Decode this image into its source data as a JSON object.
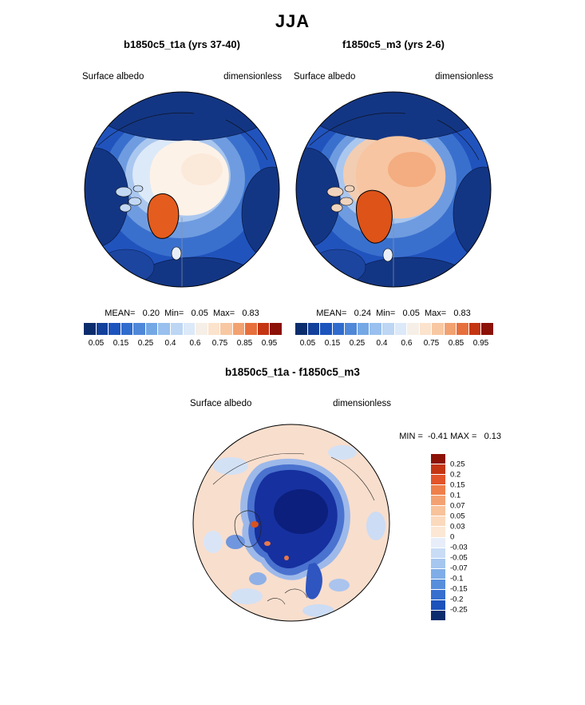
{
  "figure": {
    "title": "JJA"
  },
  "panels": [
    {
      "title": "b1850c5_t1a (yrs 37-40)",
      "var_label": "Surface albedo",
      "units": "dimensionless",
      "stats": "MEAN=   0.20  Min=   0.05  Max=   0.83"
    },
    {
      "title": "f1850c5_m3 (yrs 2-6)",
      "var_label": "Surface albedo",
      "units": "dimensionless",
      "stats": "MEAN=   0.24  Min=   0.05  Max=   0.83"
    }
  ],
  "diff_panel": {
    "title": "b1850c5_t1a - f1850c5_m3",
    "var_label": "Surface albedo",
    "units": "dimensionless",
    "minmax": "MIN =  -0.41 MAX =   0.13"
  },
  "colorbars": {
    "albedo": {
      "colors": [
        "#0b2d6d",
        "#12409b",
        "#1c54bd",
        "#2f6ccd",
        "#4f88d9",
        "#74a8e5",
        "#99c0ee",
        "#bcd6f4",
        "#dce9f8",
        "#f6efe7",
        "#fbe3cd",
        "#f8c8a2",
        "#f2a170",
        "#e76f3c",
        "#c43513",
        "#8c1106"
      ],
      "ticks": [
        "0.05",
        "0.15",
        "0.25",
        "0.4",
        "0.6",
        "0.75",
        "0.85",
        "0.95"
      ]
    },
    "diff": {
      "colors": [
        "#8c1106",
        "#c43513",
        "#e2542a",
        "#ee7f4a",
        "#f4a172",
        "#f8c29a",
        "#fbd9bd",
        "#fbe7d3",
        "#e7eef9",
        "#c8dcf5",
        "#a5c6ef",
        "#7fade7",
        "#578edc",
        "#366fce",
        "#1c52bb",
        "#0b2d6d"
      ],
      "ticks": [
        "0.25",
        "0.2",
        "0.15",
        "0.1",
        "0.07",
        "0.05",
        "0.03",
        "0",
        "-0.03",
        "-0.05",
        "-0.07",
        "-0.1",
        "-0.15",
        "-0.2",
        "-0.25"
      ]
    }
  },
  "chart_data": [
    {
      "type": "heatmap",
      "title": "b1850c5_t1a (yrs 37-40)",
      "variable": "Surface albedo",
      "units": "dimensionless",
      "season": "JJA",
      "projection": "north polar stereographic",
      "region": "Arctic",
      "stats": {
        "mean": 0.2,
        "min": 0.05,
        "max": 0.83
      },
      "colorbar_ticks": [
        0.05,
        0.15,
        0.25,
        0.4,
        0.6,
        0.75,
        0.85,
        0.95
      ],
      "n_color_bins": 16,
      "palette": "blue-white-red (low albedo ocean = blue, high albedo ice/Greenland = white-orange-red)",
      "legend_position": "below"
    },
    {
      "type": "heatmap",
      "title": "f1850c5_m3 (yrs 2-6)",
      "variable": "Surface albedo",
      "units": "dimensionless",
      "season": "JJA",
      "projection": "north polar stereographic",
      "region": "Arctic",
      "stats": {
        "mean": 0.24,
        "min": 0.05,
        "max": 0.83
      },
      "colorbar_ticks": [
        0.05,
        0.15,
        0.25,
        0.4,
        0.6,
        0.75,
        0.85,
        0.95
      ],
      "n_color_bins": 16,
      "palette": "blue-white-red",
      "legend_position": "below"
    },
    {
      "type": "heatmap",
      "title": "b1850c5_t1a - f1850c5_m3",
      "variable": "Surface albedo difference",
      "units": "dimensionless",
      "season": "JJA",
      "projection": "north polar stereographic",
      "region": "Arctic",
      "stats": {
        "min": -0.41,
        "max": 0.13
      },
      "colorbar_ticks": [
        0.25,
        0.2,
        0.15,
        0.1,
        0.07,
        0.05,
        0.03,
        0,
        -0.03,
        -0.05,
        -0.07,
        -0.1,
        -0.15,
        -0.2,
        -0.25
      ],
      "n_color_bins": 16,
      "palette": "red-white-blue diverging (negative = blue over central Arctic)",
      "legend_position": "right"
    }
  ]
}
